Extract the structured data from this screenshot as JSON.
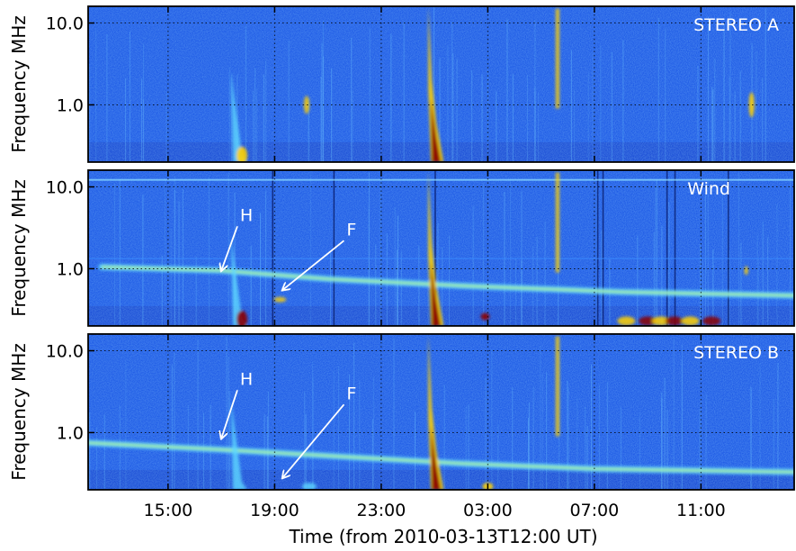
{
  "chart_data": {
    "type": "heatmap",
    "xlabel": "Time (from 2010-03-13T12:00 UT)",
    "x_ticks": [
      "15:00",
      "19:00",
      "23:00",
      "03:00",
      "07:00",
      "11:00"
    ],
    "x_tick_hours": [
      3,
      7,
      11,
      15,
      19,
      23
    ],
    "xlim_hours": [
      0,
      26.5
    ],
    "y_scale": "log",
    "ylim_mhz": [
      0.2,
      16
    ],
    "y_ticks": [
      "10.0",
      "1.0"
    ],
    "y_tick_values": [
      10,
      1
    ],
    "grid": "dotted",
    "colormap": "jet",
    "panels": [
      {
        "id": "stereo-a",
        "label": "STEREO A",
        "ylabel": "Frequency  MHz",
        "annotations": []
      },
      {
        "id": "wind",
        "label": "Wind",
        "ylabel": "Frequency  MHz",
        "annotations": [
          {
            "text": "H",
            "from": [
              5.6,
              3.3
            ],
            "to": [
              5.0,
              0.95
            ]
          },
          {
            "text": "F",
            "from": [
              9.6,
              2.2
            ],
            "to": [
              7.3,
              0.55
            ]
          }
        ]
      },
      {
        "id": "stereo-b",
        "label": "STEREO B",
        "ylabel": "Frequency MHz",
        "annotations": [
          {
            "text": "H",
            "from": [
              5.6,
              3.3
            ],
            "to": [
              5.0,
              0.85
            ]
          },
          {
            "text": "F",
            "from": [
              9.6,
              2.2
            ],
            "to": [
              7.3,
              0.28
            ]
          }
        ]
      }
    ],
    "colors": {
      "background": "#1e5ae6",
      "bright": "#5fd8ff",
      "hot": "#ffd000",
      "peak": "#8b0000",
      "annotation": "#ffffff"
    }
  }
}
